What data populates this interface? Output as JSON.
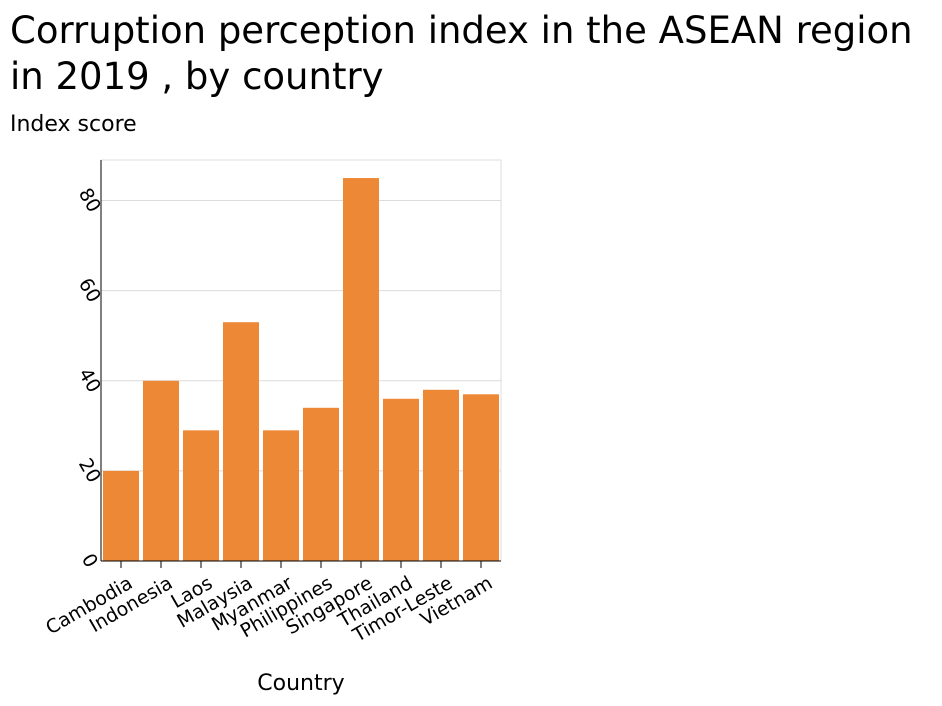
{
  "chart_data": {
    "type": "bar",
    "title": "Corruption perception index in the ASEAN region in 2019 , by country",
    "xlabel": "Country",
    "ylabel": "Index score",
    "categories": [
      "Cambodia",
      "Indonesia",
      "Laos",
      "Malaysia",
      "Myanmar",
      "Philippines",
      "Singapore",
      "Thailand",
      "Timor-Leste",
      "Vietnam"
    ],
    "values": [
      20,
      40,
      29,
      53,
      29,
      34,
      85,
      36,
      38,
      37
    ],
    "yticks": [
      0,
      20,
      40,
      60,
      80
    ],
    "ylim": [
      0,
      89
    ],
    "grid": true,
    "legend": "none",
    "bar_color": "#ed8936"
  }
}
